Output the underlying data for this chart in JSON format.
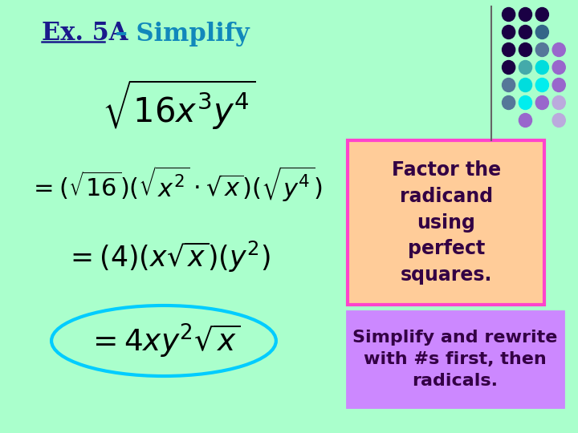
{
  "bg_color": "#aaffcc",
  "title_ex": "Ex. 5A",
  "title_rest": " – Simplify",
  "title_color_ex": "#1a1a8c",
  "title_color_rest": "#1188bb",
  "eq1": "$\\sqrt{16x^3y^4}$",
  "eq2": "$=(\\sqrt{16})(\\sqrt{x^2}\\cdot\\sqrt{x})(\\sqrt{y^4})$",
  "eq3": "$=(4)(x\\sqrt{x})(y^2)$",
  "eq4": "$=4xy^2\\sqrt{x}$",
  "box1_text": "Factor the\nradicand\nusing\nperfect\nsquares.",
  "box1_bg": "#ffcc99",
  "box1_border": "#ff44cc",
  "box1_text_color": "#330044",
  "box2_text": "Simplify and rewrite\nwith #s first, then\nradicals.",
  "box2_bg": "#cc88ff",
  "box2_border": "#cc88ff",
  "box2_text_color": "#330044",
  "ellipse_color": "#00ccff",
  "line_color": "#666666",
  "dots": [
    {
      "r": 0,
      "c": 0,
      "color": "#1a0044"
    },
    {
      "r": 0,
      "c": 1,
      "color": "#1a0044"
    },
    {
      "r": 0,
      "c": 2,
      "color": "#1a0044"
    },
    {
      "r": 1,
      "c": 0,
      "color": "#1a0044"
    },
    {
      "r": 1,
      "c": 1,
      "color": "#1a0044"
    },
    {
      "r": 1,
      "c": 2,
      "color": "#336688"
    },
    {
      "r": 2,
      "c": 0,
      "color": "#1a0044"
    },
    {
      "r": 2,
      "c": 1,
      "color": "#1a0044"
    },
    {
      "r": 2,
      "c": 2,
      "color": "#557799"
    },
    {
      "r": 2,
      "c": 3,
      "color": "#9966cc"
    },
    {
      "r": 3,
      "c": 0,
      "color": "#1a0044"
    },
    {
      "r": 3,
      "c": 1,
      "color": "#44aaaa"
    },
    {
      "r": 3,
      "c": 2,
      "color": "#00dddd"
    },
    {
      "r": 3,
      "c": 3,
      "color": "#9966cc"
    },
    {
      "r": 4,
      "c": 0,
      "color": "#557799"
    },
    {
      "r": 4,
      "c": 1,
      "color": "#00dddd"
    },
    {
      "r": 4,
      "c": 2,
      "color": "#00eeee"
    },
    {
      "r": 4,
      "c": 3,
      "color": "#9966cc"
    },
    {
      "r": 5,
      "c": 0,
      "color": "#557799"
    },
    {
      "r": 5,
      "c": 1,
      "color": "#00eeee"
    },
    {
      "r": 5,
      "c": 2,
      "color": "#9966cc"
    },
    {
      "r": 5,
      "c": 3,
      "color": "#bbaadd"
    },
    {
      "r": 6,
      "c": 1,
      "color": "#9966cc"
    },
    {
      "r": 6,
      "c": 3,
      "color": "#bbaadd"
    }
  ]
}
